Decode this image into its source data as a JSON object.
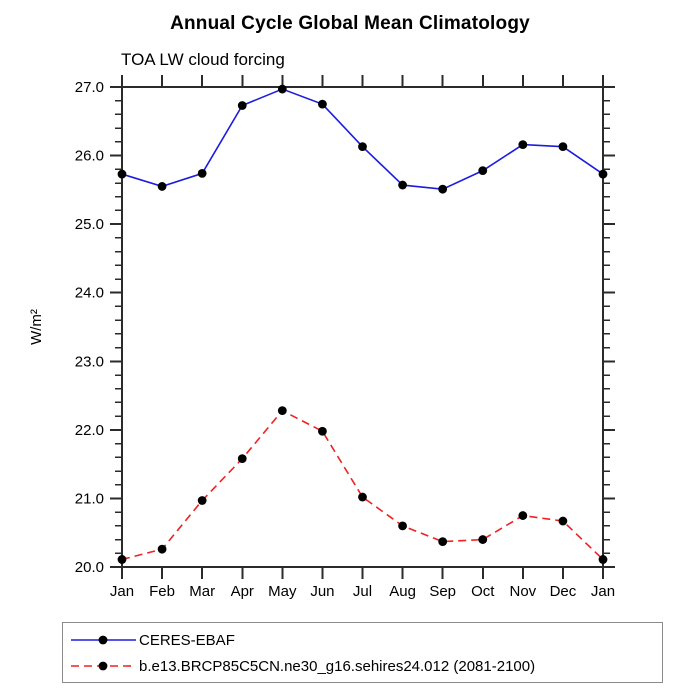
{
  "title": "Annual Cycle Global Mean Climatology",
  "subtitle": "TOA LW cloud forcing",
  "chart_data": {
    "type": "line",
    "categories": [
      "Jan",
      "Feb",
      "Mar",
      "Apr",
      "May",
      "Jun",
      "Jul",
      "Aug",
      "Sep",
      "Oct",
      "Nov",
      "Dec",
      "Jan"
    ],
    "series": [
      {
        "name": "CERES-EBAF",
        "color": "#1c1ce0",
        "line_style": "solid",
        "marker": "filled-black-circle",
        "values": [
          25.73,
          25.55,
          25.74,
          26.73,
          26.97,
          26.75,
          26.13,
          25.57,
          25.51,
          25.78,
          26.16,
          26.13,
          25.73
        ]
      },
      {
        "name": "b.e13.BRCP85C5CN.ne30_g16.sehires24.012 (2081-2100)",
        "color": "#ee2222",
        "line_style": "dashed",
        "marker": "filled-black-circle",
        "values": [
          20.11,
          20.26,
          20.97,
          21.58,
          22.28,
          21.98,
          21.02,
          20.6,
          20.37,
          20.4,
          20.75,
          20.67,
          20.11
        ]
      }
    ],
    "xlabel": "",
    "ylabel": "W/m²",
    "ylim": [
      20.0,
      27.0
    ],
    "yticks": [
      20.0,
      21.0,
      22.0,
      23.0,
      24.0,
      25.0,
      26.0,
      27.0
    ],
    "ytick_labels": [
      "20.0",
      "21.0",
      "22.0",
      "23.0",
      "24.0",
      "25.0",
      "26.0",
      "27.0"
    ],
    "yminor_step": 0.2,
    "grid": false,
    "frame_color": "#2b2b2b",
    "legend_position": "bottom-left"
  }
}
